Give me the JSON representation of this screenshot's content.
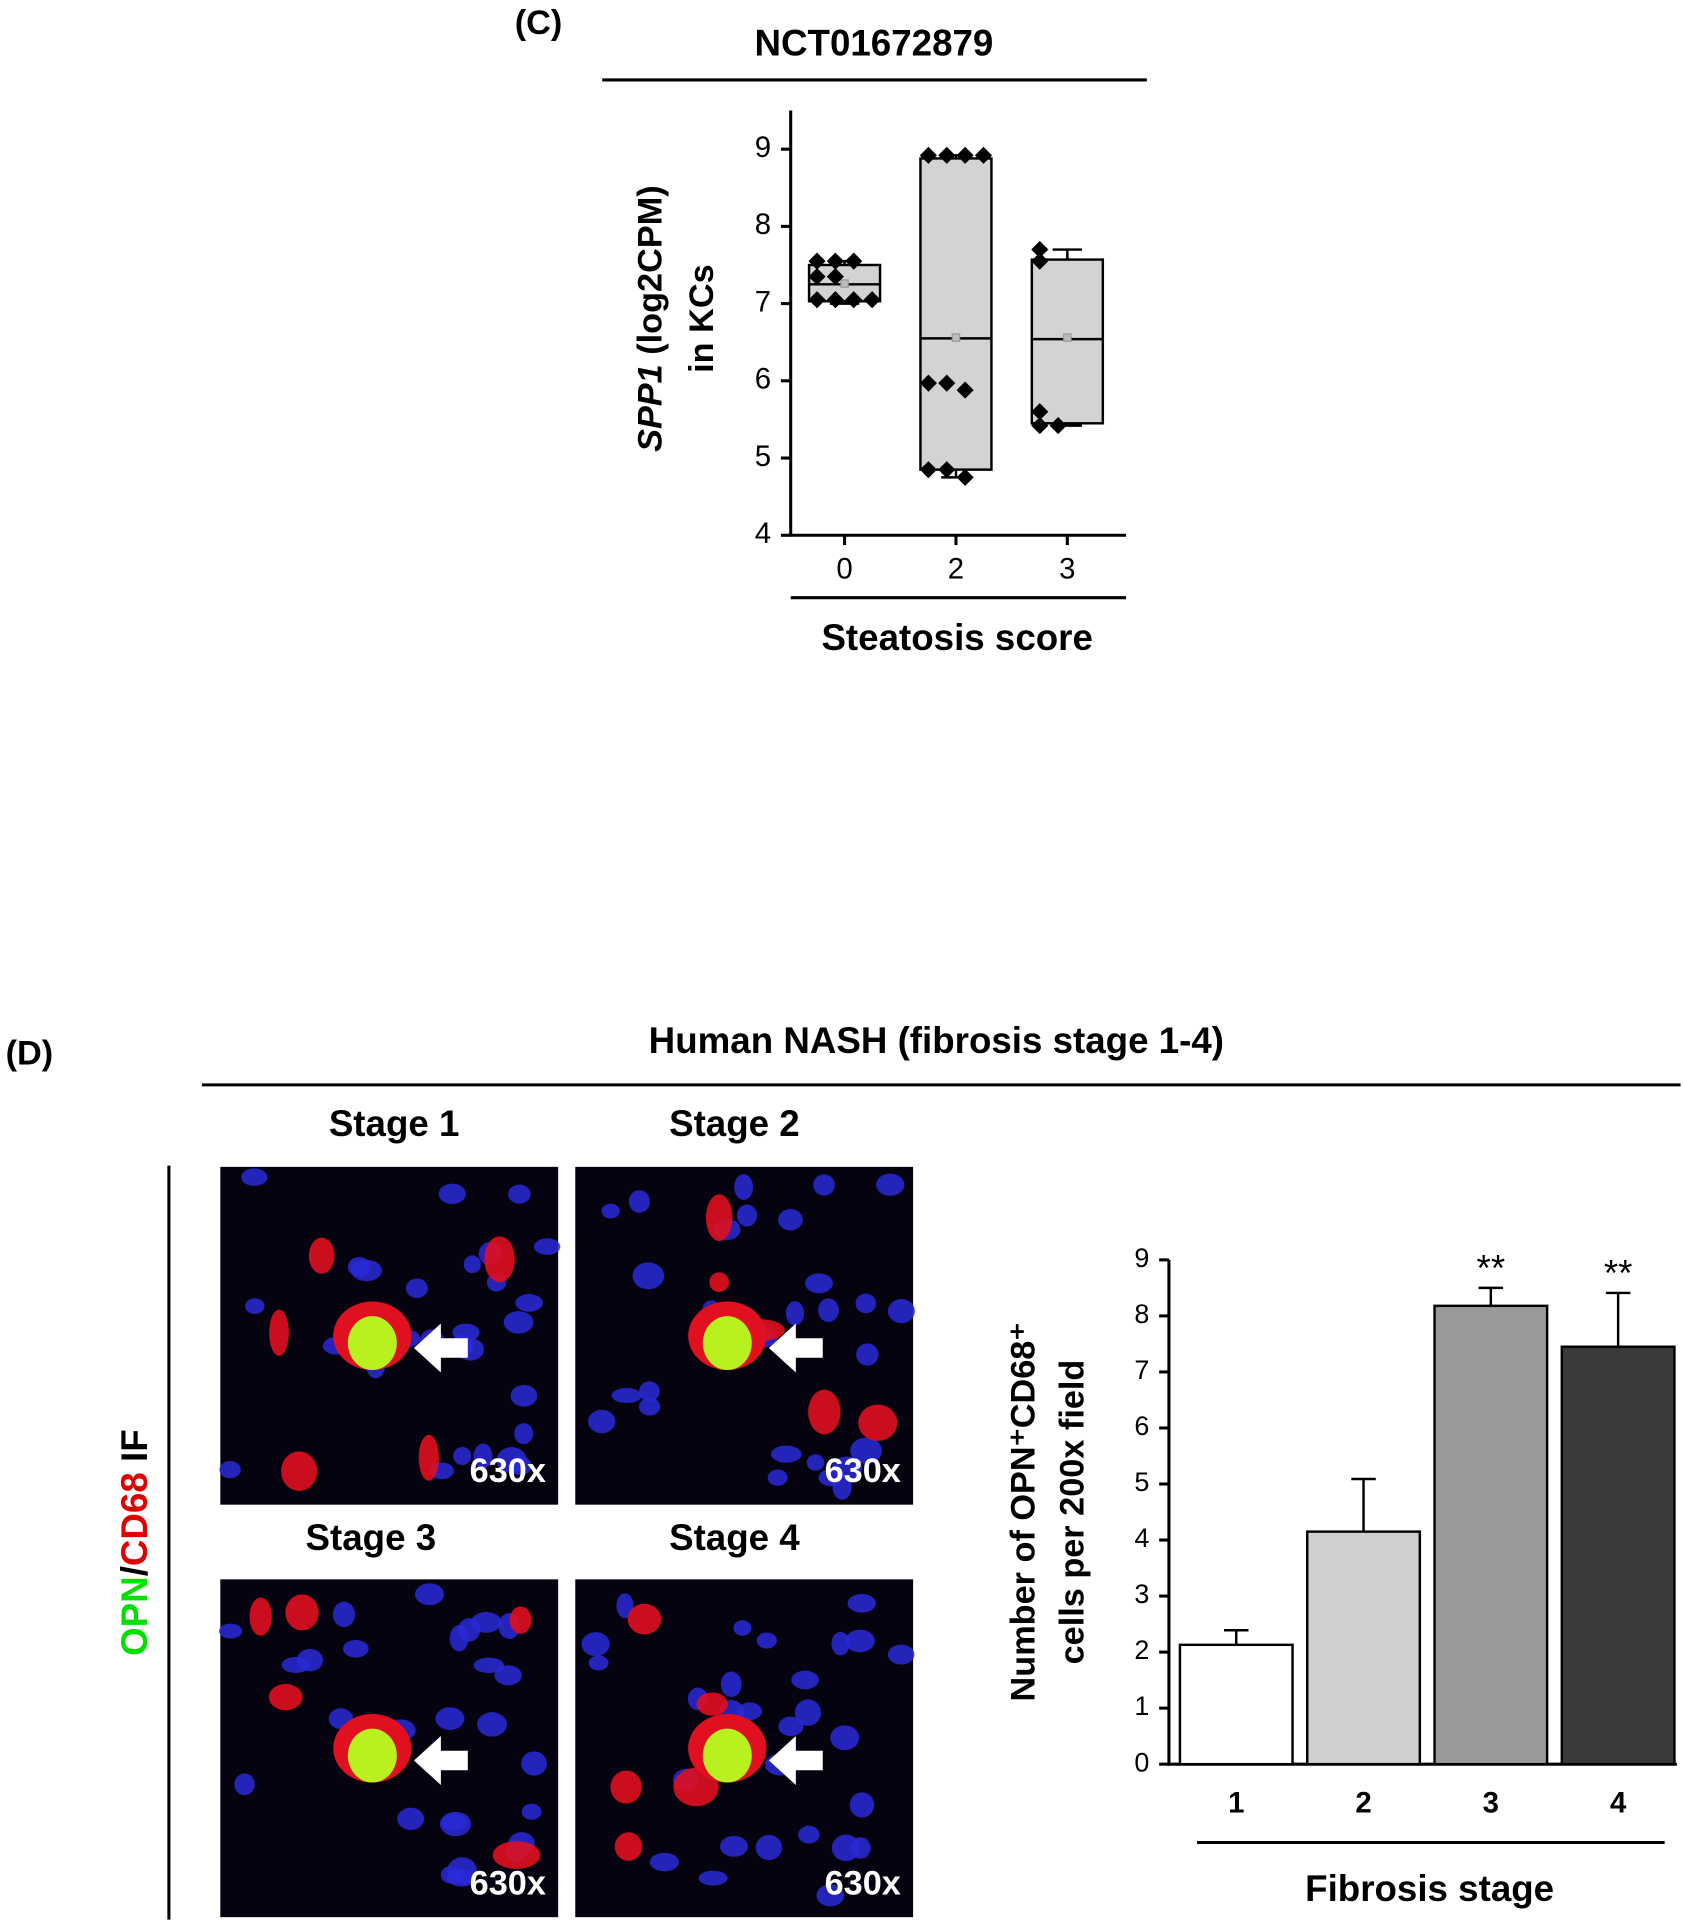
{
  "panel_labels": [
    "(C)",
    "(D)"
  ],
  "panel_d": {
    "title": "Human NASH (fibrosis stage 1-4)",
    "stain_label": [
      {
        "text": "OPN",
        "color": "#00e000"
      },
      {
        "text": "/",
        "color": "#000000"
      },
      {
        "text": "CD68",
        "color": "#e00000"
      },
      {
        "text": " IF",
        "color": "#000000"
      }
    ],
    "images": [
      {
        "label": "Stage 1",
        "magnification": "630x"
      },
      {
        "label": "Stage 2",
        "magnification": "630x"
      },
      {
        "label": "Stage 3",
        "magnification": "630x"
      },
      {
        "label": "Stage 4",
        "magnification": "630x"
      }
    ]
  },
  "chart_data": [
    {
      "type": "box",
      "title": "NCT01672879",
      "y_label_gene": "SPP1",
      "y_label_rest": " (log2CPM)",
      "y_label_line2": "in KCs",
      "x_label": "Steatosis score",
      "categories": [
        "0",
        "2",
        "3"
      ],
      "ylim": [
        4,
        9.5
      ],
      "yticks": [
        4,
        5,
        6,
        7,
        8,
        9
      ],
      "color": "#d3d3d3",
      "boxes": [
        {
          "low": 7.0,
          "q1": 7.03,
          "median": 7.25,
          "q3": 7.5,
          "high": 7.55,
          "mean": 7.26,
          "points": [
            7.55,
            7.55,
            7.55,
            7.35,
            7.35,
            7.05,
            7.05,
            7.05,
            7.05
          ]
        },
        {
          "low": 4.75,
          "q1": 4.85,
          "median": 6.55,
          "q3": 8.88,
          "high": 8.92,
          "mean": 6.56,
          "points": [
            8.92,
            8.92,
            8.92,
            8.92,
            5.97,
            5.97,
            5.88,
            4.85,
            4.85,
            4.75
          ]
        },
        {
          "low": 5.42,
          "q1": 5.45,
          "median": 6.54,
          "q3": 7.57,
          "high": 7.7,
          "mean": 6.56,
          "points": [
            7.7,
            7.55,
            5.6,
            5.42,
            5.42
          ]
        }
      ]
    },
    {
      "type": "bar",
      "y_label_line1": "Number of OPN⁺CD68⁺",
      "y_label_line2": "cells per 200x field",
      "x_label": "Fibrosis stage",
      "categories": [
        "1",
        "2",
        "3",
        "4"
      ],
      "values": [
        2.13,
        4.15,
        8.18,
        7.45
      ],
      "errors": [
        0.26,
        0.94,
        0.32,
        0.96
      ],
      "colors": [
        "#ffffff",
        "#d0d0d0",
        "#999999",
        "#3a3a3a"
      ],
      "annotations": [
        {
          "category": 2,
          "text": "**"
        },
        {
          "category": 3,
          "text": "**"
        }
      ],
      "ylim": [
        0,
        9
      ],
      "yticks": [
        0,
        1,
        2,
        3,
        4,
        5,
        6,
        7,
        8,
        9
      ]
    }
  ]
}
